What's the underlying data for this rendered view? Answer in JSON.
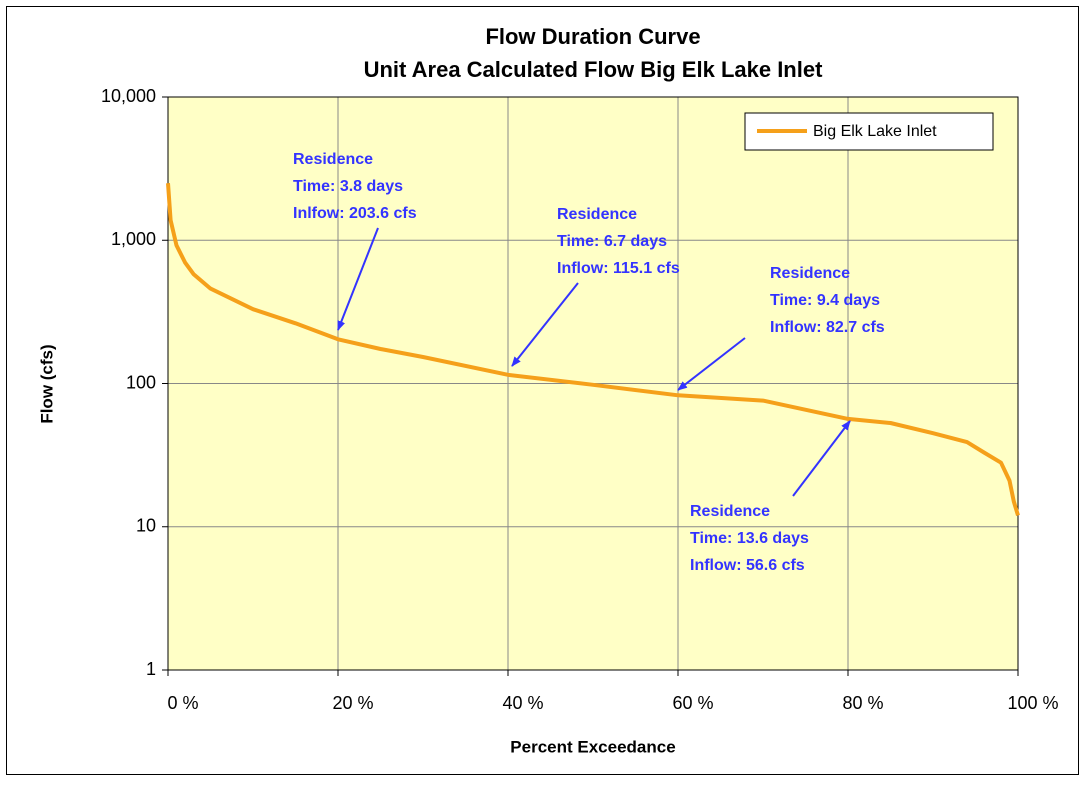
{
  "chart_data": {
    "type": "line",
    "title": "Flow Duration Curve",
    "subtitle": "Unit Area Calculated Flow Big Elk Lake Inlet",
    "x_label": "Percent Exceedance",
    "y_label": "Flow (cfs)",
    "x": [
      0,
      0.3,
      1,
      2,
      3,
      5,
      10,
      15,
      20,
      25,
      30,
      40,
      50,
      60,
      70,
      80,
      85,
      90,
      94,
      96,
      98,
      99,
      99.5,
      100
    ],
    "series": [
      {
        "name": "Big Elk Lake Inlet",
        "color": "#f5a01a",
        "values": [
          2500,
          1380,
          920,
          700,
          580,
          460,
          330,
          263,
          203.6,
          174,
          153,
          115.1,
          98,
          82.7,
          76,
          56.6,
          53,
          45,
          39,
          33,
          28,
          21,
          15,
          12
        ]
      }
    ],
    "xlim": [
      0,
      100
    ],
    "xticks": [
      {
        "value": 0,
        "label": "0 %"
      },
      {
        "value": 20,
        "label": "20 %"
      },
      {
        "value": 40,
        "label": "40 %"
      },
      {
        "value": 60,
        "label": "60 %"
      },
      {
        "value": 80,
        "label": "80 %"
      },
      {
        "value": 100,
        "label": "100 %"
      }
    ],
    "ylim": [
      1,
      10000
    ],
    "yticks": [
      1,
      10,
      100,
      {
        "value": 1000,
        "label": "1,000"
      },
      {
        "value": 10000,
        "label": "10,000"
      }
    ],
    "log_y": true,
    "grid": true,
    "legend": "upper right",
    "annotations": [
      [
        "Residence",
        "Time: 3.8 days",
        "Inlfow: 203.6 cfs"
      ],
      [
        "Residence",
        "Time: 6.7 days",
        "Inflow: 115.1 cfs"
      ],
      [
        "Residence",
        "Time: 9.4 days",
        "Inflow: 82.7 cfs"
      ],
      [
        "Residence",
        "Time: 13.6 days",
        "Inflow: 56.6 cfs"
      ]
    ]
  }
}
